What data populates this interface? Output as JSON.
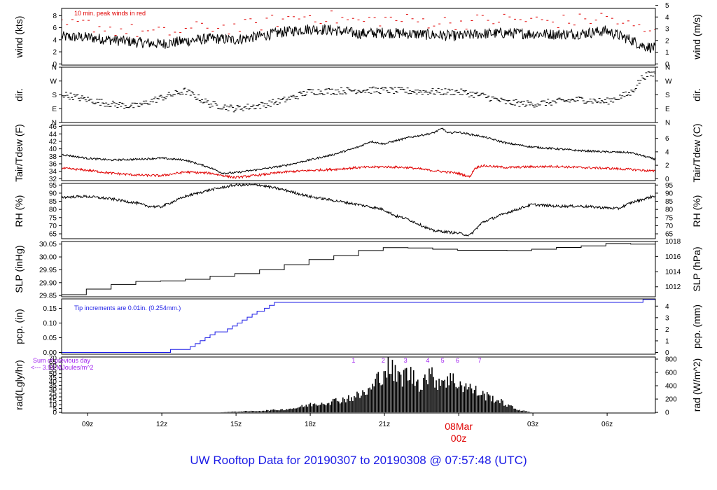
{
  "title": "UW Rooftop Data for 20190307  to  20190308 @ 07:57:48  (UTC)",
  "colors": {
    "line": "#000000",
    "red": "#e00000",
    "blue": "#1a1ae6",
    "purple": "#a020f0",
    "axis": "#000000"
  },
  "chart_data": {
    "type": "line",
    "x_axis": {
      "unit": "hours since 2019-03-07 07:57 UTC",
      "range": [
        0,
        24
      ],
      "ticks": [
        {
          "x": 1.05,
          "label": "09z"
        },
        {
          "x": 4.05,
          "label": "12z"
        },
        {
          "x": 7.05,
          "label": "15z"
        },
        {
          "x": 10.05,
          "label": "18z"
        },
        {
          "x": 13.05,
          "label": "21z"
        },
        {
          "x": 16.05,
          "label": "08Mar",
          "label2": "00z",
          "highlight": true
        },
        {
          "x": 19.05,
          "label": "03z"
        },
        {
          "x": 22.05,
          "label": "06z"
        }
      ]
    },
    "panels": [
      {
        "id": "wind",
        "ylabel_left": "wind (kts)",
        "ylabel_right": "wind (m/s)",
        "left_range": [
          -0.2,
          9.2
        ],
        "left_ticks": [
          0,
          2,
          4,
          6,
          8
        ],
        "right_ticks": [
          {
            "v": 0,
            "l": "0"
          },
          {
            "v": 1.944,
            "l": "1"
          },
          {
            "v": 3.888,
            "l": "2"
          },
          {
            "v": 5.832,
            "l": "3"
          },
          {
            "v": 7.776,
            "l": "4"
          },
          {
            "v": 9.72,
            "l": "5"
          }
        ],
        "annotation": "10 min. peak winds in red",
        "series": [
          {
            "name": "wind speed",
            "color": "#000000",
            "style": "noisy",
            "noise": 0.9,
            "x": [
              0,
              1,
              2,
              3,
              4,
              5,
              6,
              7,
              8,
              9,
              10,
              11,
              12,
              13,
              14,
              15,
              16,
              17,
              18,
              19,
              20,
              21,
              22,
              23,
              23.5,
              24
            ],
            "y": [
              4.5,
              4.4,
              4.0,
              3.6,
              3.3,
              3.8,
              4.2,
              4.0,
              4.6,
              5.3,
              5.8,
              5.6,
              5.0,
              5.2,
              5.0,
              4.8,
              4.6,
              5.0,
              5.1,
              5.0,
              4.9,
              5.0,
              5.5,
              4.0,
              3.0,
              2.6
            ]
          },
          {
            "name": "10 min. peak winds",
            "color": "#e00000",
            "style": "dashes",
            "noise": 1.2,
            "x": [
              0,
              1,
              2,
              3,
              4,
              5,
              6,
              7,
              8,
              9,
              10,
              11,
              12,
              13,
              14,
              15,
              16,
              17,
              18,
              19,
              20,
              21,
              22,
              23,
              24
            ],
            "y": [
              6.2,
              6.6,
              5.8,
              5.4,
              5.0,
              5.6,
              6.2,
              6.0,
              6.6,
              7.4,
              8.0,
              7.6,
              7.0,
              7.4,
              7.2,
              7.0,
              6.8,
              7.2,
              7.4,
              7.2,
              7.0,
              7.2,
              7.8,
              6.2,
              5.0
            ]
          }
        ]
      },
      {
        "id": "dir",
        "ylabel_left": "dir.",
        "ylabel_right": "dir.",
        "left_range": [
          0,
          360
        ],
        "left_ticks_text": [
          {
            "v": 360,
            "l": "N"
          },
          {
            "v": 270,
            "l": "W"
          },
          {
            "v": 180,
            "l": "S"
          },
          {
            "v": 90,
            "l": "E"
          },
          {
            "v": 0,
            "l": "N"
          }
        ],
        "series": [
          {
            "name": "wind direction",
            "color": "#000000",
            "style": "dashes",
            "noise": 22,
            "x": [
              0,
              1,
              2,
              3,
              4,
              5,
              6,
              7,
              8,
              9,
              10,
              11,
              12,
              13,
              14,
              15,
              16,
              17,
              18,
              19,
              20,
              21,
              22,
              23,
              23.5,
              24
            ],
            "y": [
              185,
              150,
              120,
              105,
              160,
              205,
              120,
              90,
              110,
              145,
              200,
              205,
              210,
              210,
              205,
              200,
              200,
              175,
              130,
              120,
              135,
              150,
              135,
              190,
              300,
              320
            ]
          }
        ]
      },
      {
        "id": "temp",
        "ylabel_left": "Tair/Tdew (F)",
        "ylabel_right": "Tair/Tdew (C)",
        "left_range": [
          31.5,
          46.3
        ],
        "left_ticks": [
          32,
          34,
          36,
          38,
          40,
          42,
          44,
          46
        ],
        "right_ticks": [
          {
            "v": 32,
            "l": "0"
          },
          {
            "v": 35.6,
            "l": "2"
          },
          {
            "v": 39.2,
            "l": "4"
          },
          {
            "v": 42.8,
            "l": "6"
          }
        ],
        "series": [
          {
            "name": "Tair",
            "color": "#000000",
            "style": "noisy",
            "noise": 0.25,
            "x": [
              0,
              1,
              2,
              3,
              4,
              5,
              6,
              6.5,
              7,
              8,
              9,
              10,
              11,
              12,
              12.5,
              13,
              14,
              15,
              15.4,
              15.6,
              16,
              17,
              18,
              19,
              20,
              21,
              22,
              23,
              24
            ],
            "y": [
              38.5,
              37.5,
              37.0,
              37.2,
              37.5,
              37.0,
              35.0,
              33.5,
              33.6,
              34.5,
              35.5,
              37.0,
              38.5,
              40.5,
              42.0,
              41.3,
              43.0,
              44.2,
              45.5,
              44.2,
              44.5,
              43.3,
              41.5,
              40.5,
              40.0,
              39.5,
              39.2,
              39.0,
              37.2
            ]
          },
          {
            "name": "Tdew",
            "color": "#e00000",
            "style": "noisy",
            "noise": 0.3,
            "x": [
              0,
              1,
              2,
              3,
              4,
              5,
              6,
              7,
              8,
              9,
              10,
              11,
              12,
              13,
              14,
              15,
              16,
              16.5,
              16.7,
              17,
              18,
              19,
              20,
              21,
              22,
              23,
              24
            ],
            "y": [
              34.8,
              34.3,
              33.5,
              33.0,
              32.8,
              33.8,
              33.5,
              32.3,
              33.0,
              33.8,
              34.2,
              34.5,
              35.0,
              35.2,
              35.0,
              34.2,
              33.5,
              32.5,
              34.8,
              35.5,
              35.0,
              35.2,
              35.3,
              35.0,
              34.8,
              34.5,
              34.0
            ]
          }
        ]
      },
      {
        "id": "rh",
        "ylabel_left": "RH (%)",
        "ylabel_right": "RH (%)",
        "left_range": [
          62,
          96
        ],
        "left_ticks": [
          65,
          70,
          75,
          80,
          85,
          90,
          95
        ],
        "right_ticks": [
          {
            "v": 65,
            "l": "65"
          },
          {
            "v": 70,
            "l": "70"
          },
          {
            "v": 75,
            "l": "75"
          },
          {
            "v": 80,
            "l": "80"
          },
          {
            "v": 85,
            "l": "85"
          },
          {
            "v": 90,
            "l": "90"
          },
          {
            "v": 95,
            "l": "95"
          }
        ],
        "series": [
          {
            "name": "RH",
            "color": "#000000",
            "style": "noisy",
            "noise": 0.8,
            "x": [
              0,
              1,
              2,
              3,
              3.5,
              4,
              5,
              6,
              7,
              8,
              9,
              10,
              11,
              12,
              12.5,
              13,
              13.5,
              14,
              14.5,
              15,
              16,
              16.5,
              17,
              18,
              19,
              20,
              21,
              22,
              22.5,
              23,
              24
            ],
            "y": [
              87.5,
              88,
              86.5,
              84,
              82,
              81.5,
              88,
              92,
              95,
              95,
              92,
              88,
              85.5,
              83,
              81.5,
              80,
              76,
              74,
              70.5,
              67,
              65.5,
              64,
              72,
              78,
              83,
              82,
              82,
              81,
              80.5,
              84,
              88.5
            ]
          }
        ]
      },
      {
        "id": "slp",
        "ylabel_left": "SLP (inHg)",
        "ylabel_right": "SLP (hPa)",
        "left_range": [
          29.845,
          30.06
        ],
        "left_ticks": [
          29.85,
          29.9,
          29.95,
          30.0,
          30.05
        ],
        "left_tick_fmt": 2,
        "right_ticks": [
          {
            "v": 29.8838,
            "l": "1012"
          },
          {
            "v": 29.9428,
            "l": "1014"
          },
          {
            "v": 30.0019,
            "l": "1016"
          },
          {
            "v": 30.0609,
            "l": "1018"
          }
        ],
        "series": [
          {
            "name": "SLP",
            "color": "#000000",
            "style": "step",
            "noise": 0,
            "x": [
              0,
              1,
              2,
              3,
              4,
              5,
              6,
              7,
              8,
              9,
              10,
              11,
              12,
              13,
              14,
              15,
              16,
              17,
              18,
              19,
              20,
              21,
              22,
              23,
              24
            ],
            "y": [
              29.853,
              29.875,
              29.893,
              29.905,
              29.907,
              29.913,
              29.925,
              29.935,
              29.95,
              29.97,
              29.99,
              30.005,
              30.025,
              30.036,
              30.035,
              30.03,
              30.026,
              30.026,
              30.025,
              30.03,
              30.037,
              30.043,
              30.052,
              30.05,
              30.05
            ]
          }
        ]
      },
      {
        "id": "pcp",
        "ylabel_left": "pcp. (in)",
        "ylabel_right": "pcp. (mm)",
        "left_range": [
          -0.006,
          0.182
        ],
        "left_ticks": [
          0.0,
          0.05,
          0.1,
          0.15
        ],
        "left_tick_fmt": 2,
        "right_ticks": [
          {
            "v": 0,
            "l": "0"
          },
          {
            "v": 0.03937,
            "l": "1"
          },
          {
            "v": 0.07874,
            "l": "2"
          },
          {
            "v": 0.11811,
            "l": "3"
          },
          {
            "v": 0.15748,
            "l": "4"
          }
        ],
        "annotation": "Tip increments are 0.01in. (0.254mm.)",
        "series": [
          {
            "name": "precip accumulation",
            "color": "#1a1ae6",
            "style": "step",
            "noise": 0,
            "x": [
              0,
              4.4,
              5.2,
              5.4,
              5.6,
              5.8,
              6.0,
              6.2,
              6.5,
              6.7,
              6.9,
              7.1,
              7.3,
              7.5,
              7.7,
              7.9,
              8.0,
              8.2,
              8.4,
              8.6,
              9.1,
              23.5,
              24
            ],
            "y": [
              0.0,
              0.01,
              0.02,
              0.03,
              0.04,
              0.05,
              0.06,
              0.07,
              0.07,
              0.08,
              0.09,
              0.1,
              0.11,
              0.12,
              0.13,
              0.14,
              0.14,
              0.15,
              0.16,
              0.17,
              0.17,
              0.18,
              0.18
            ]
          }
        ]
      },
      {
        "id": "rad",
        "ylabel_left": "rad(Lgly/hr)",
        "ylabel_right": "rad (W/m^2)",
        "left_range": [
          -0.8,
          71.5
        ],
        "left_ticks": [
          0,
          5,
          10,
          15,
          20,
          25,
          30,
          35,
          40,
          45,
          50,
          55,
          60,
          65,
          70
        ],
        "right_ticks": [
          {
            "v": 0,
            "l": "0"
          },
          {
            "v": 17.2,
            "l": "200"
          },
          {
            "v": 34.4,
            "l": "400"
          },
          {
            "v": 51.6,
            "l": "600"
          },
          {
            "v": 68.8,
            "l": "800"
          }
        ],
        "annotation_lines": [
          "Sum of previous day",
          "<--- 3.93 MJoules/m^2"
        ],
        "event_markers": [
          {
            "x": 11.8,
            "label": "1"
          },
          {
            "x": 13.0,
            "label": "2"
          },
          {
            "x": 13.9,
            "label": "3"
          },
          {
            "x": 14.8,
            "label": "4"
          },
          {
            "x": 15.4,
            "label": "5"
          },
          {
            "x": 16.0,
            "label": "6"
          },
          {
            "x": 16.9,
            "label": "7"
          }
        ],
        "series": [
          {
            "name": "solar radiation",
            "color": "#000000",
            "style": "area",
            "noise": 12,
            "x": [
              0,
              6.4,
              7.0,
              8.0,
              9.0,
              9.5,
              10.0,
              11.0,
              12.0,
              12.5,
              13.0,
              13.2,
              13.6,
              14.0,
              14.5,
              14.8,
              15.2,
              15.6,
              16.0,
              16.5,
              17.0,
              17.5,
              18.0,
              18.4,
              19.0,
              24
            ],
            "y": [
              0,
              0,
              1,
              2,
              4,
              6,
              10,
              15,
              22,
              30,
              55,
              62,
              45,
              52,
              38,
              50,
              42,
              45,
              40,
              32,
              24,
              18,
              10,
              4,
              0,
              0
            ]
          }
        ]
      }
    ]
  }
}
